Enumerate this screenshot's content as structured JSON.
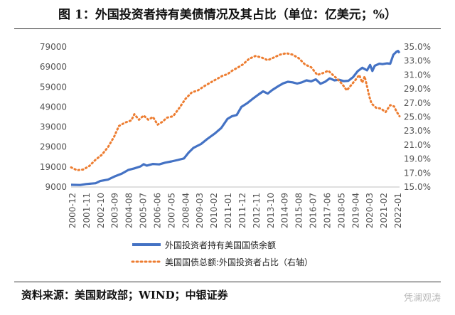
{
  "title": "图 1：外国投资者持有美债情况及其占比（单位：亿美元；%）",
  "source": "资料来源：美国财政部；WIND；中银证券",
  "watermark": "凭澜观涛",
  "colors": {
    "holdings": "#4472C4",
    "share": "#ED7D31",
    "axis": "#555555"
  },
  "chart_data": {
    "type": "line",
    "categories": [
      "2000-12",
      "2001-11",
      "2002-10",
      "2003-09",
      "2004-08",
      "2005-07",
      "2006-06",
      "2007-05",
      "2008-04",
      "2009-03",
      "2010-02",
      "2011-01",
      "2011-12",
      "2012-11",
      "2013-10",
      "2014-09",
      "2015-08",
      "2016-07",
      "2017-06",
      "2018-05",
      "2019-04",
      "2020-03",
      "2021-02",
      "2022-01"
    ],
    "y_left": {
      "ticks": [
        "9000",
        "19000",
        "29000",
        "39000",
        "49000",
        "59000",
        "69000",
        "79000"
      ],
      "range": [
        9000,
        79000
      ]
    },
    "y_right": {
      "ticks": [
        "15.0%",
        "17.0%",
        "19.0%",
        "21.0%",
        "23.0%",
        "25.0%",
        "27.0%",
        "29.0%",
        "31.0%",
        "33.0%",
        "35.0%"
      ],
      "range": [
        15,
        35
      ]
    },
    "series": [
      {
        "name": "外国投资者持有美国国债余额",
        "axis": "left",
        "style": "solid",
        "points": [
          [
            2000.92,
            10100
          ],
          [
            2001.5,
            10000
          ],
          [
            2001.9,
            10500
          ],
          [
            2002.5,
            10900
          ],
          [
            2002.8,
            12000
          ],
          [
            2003.3,
            12700
          ],
          [
            2003.7,
            14200
          ],
          [
            2004.2,
            15700
          ],
          [
            2004.6,
            17500
          ],
          [
            2005.0,
            18300
          ],
          [
            2005.4,
            19300
          ],
          [
            2005.6,
            20400
          ],
          [
            2005.8,
            19700
          ],
          [
            2006.2,
            20500
          ],
          [
            2006.6,
            20300
          ],
          [
            2007.0,
            21200
          ],
          [
            2007.4,
            21800
          ],
          [
            2007.8,
            22500
          ],
          [
            2008.2,
            23300
          ],
          [
            2008.5,
            26200
          ],
          [
            2008.8,
            28500
          ],
          [
            2009.3,
            30500
          ],
          [
            2009.7,
            33000
          ],
          [
            2010.2,
            35800
          ],
          [
            2010.6,
            38500
          ],
          [
            2011.0,
            43000
          ],
          [
            2011.3,
            44400
          ],
          [
            2011.6,
            45000
          ],
          [
            2011.9,
            49000
          ],
          [
            2012.3,
            51000
          ],
          [
            2012.7,
            53500
          ],
          [
            2013.0,
            55200
          ],
          [
            2013.3,
            56800
          ],
          [
            2013.6,
            55700
          ],
          [
            2013.9,
            57500
          ],
          [
            2014.3,
            59500
          ],
          [
            2014.6,
            60800
          ],
          [
            2014.9,
            61600
          ],
          [
            2015.2,
            61300
          ],
          [
            2015.5,
            60700
          ],
          [
            2015.8,
            61300
          ],
          [
            2016.1,
            62300
          ],
          [
            2016.4,
            61800
          ],
          [
            2016.7,
            62800
          ],
          [
            2017.0,
            60600
          ],
          [
            2017.3,
            61600
          ],
          [
            2017.6,
            63300
          ],
          [
            2017.9,
            62300
          ],
          [
            2018.2,
            62600
          ],
          [
            2018.5,
            61900
          ],
          [
            2018.8,
            62100
          ],
          [
            2019.1,
            63900
          ],
          [
            2019.4,
            66900
          ],
          [
            2019.7,
            68600
          ],
          [
            2020.0,
            67300
          ],
          [
            2020.2,
            70000
          ],
          [
            2020.35,
            67000
          ],
          [
            2020.5,
            69600
          ],
          [
            2020.8,
            70600
          ],
          [
            2021.0,
            70400
          ],
          [
            2021.3,
            70800
          ],
          [
            2021.5,
            70600
          ],
          [
            2021.7,
            75100
          ],
          [
            2021.9,
            76600
          ],
          [
            2022.0,
            77000
          ],
          [
            2022.1,
            76000
          ]
        ]
      },
      {
        "name": "美国国债总额:外国投资者占比（右轴）",
        "axis": "right",
        "style": "dotted",
        "points": [
          [
            2000.92,
            17.8
          ],
          [
            2001.3,
            17.4
          ],
          [
            2001.7,
            17.5
          ],
          [
            2002.1,
            18.0
          ],
          [
            2002.5,
            18.9
          ],
          [
            2002.9,
            19.6
          ],
          [
            2003.3,
            20.7
          ],
          [
            2003.7,
            22.2
          ],
          [
            2004.0,
            23.7
          ],
          [
            2004.4,
            24.2
          ],
          [
            2004.8,
            24.5
          ],
          [
            2005.0,
            25.4
          ],
          [
            2005.3,
            24.6
          ],
          [
            2005.6,
            25.2
          ],
          [
            2005.9,
            24.6
          ],
          [
            2006.2,
            25.0
          ],
          [
            2006.5,
            23.9
          ],
          [
            2006.8,
            24.3
          ],
          [
            2007.1,
            24.9
          ],
          [
            2007.5,
            25.1
          ],
          [
            2007.9,
            26.3
          ],
          [
            2008.3,
            27.6
          ],
          [
            2008.7,
            28.5
          ],
          [
            2009.1,
            28.8
          ],
          [
            2009.5,
            29.4
          ],
          [
            2009.9,
            29.9
          ],
          [
            2010.3,
            30.4
          ],
          [
            2010.7,
            30.9
          ],
          [
            2011.0,
            31.1
          ],
          [
            2011.3,
            31.6
          ],
          [
            2011.7,
            32.1
          ],
          [
            2012.0,
            32.5
          ],
          [
            2012.4,
            33.3
          ],
          [
            2012.8,
            33.7
          ],
          [
            2013.2,
            33.5
          ],
          [
            2013.6,
            33.1
          ],
          [
            2014.0,
            33.5
          ],
          [
            2014.4,
            33.9
          ],
          [
            2014.8,
            34.1
          ],
          [
            2015.2,
            33.9
          ],
          [
            2015.6,
            33.4
          ],
          [
            2016.0,
            32.5
          ],
          [
            2016.4,
            32.1
          ],
          [
            2016.8,
            31.0
          ],
          [
            2017.2,
            31.3
          ],
          [
            2017.5,
            31.6
          ],
          [
            2017.8,
            31.0
          ],
          [
            2018.1,
            30.4
          ],
          [
            2018.4,
            29.7
          ],
          [
            2018.7,
            28.8
          ],
          [
            2019.0,
            29.6
          ],
          [
            2019.3,
            30.4
          ],
          [
            2019.5,
            31.0
          ],
          [
            2019.7,
            29.9
          ],
          [
            2019.85,
            30.8
          ],
          [
            2020.0,
            29.4
          ],
          [
            2020.15,
            27.9
          ],
          [
            2020.3,
            26.9
          ],
          [
            2020.6,
            26.3
          ],
          [
            2020.9,
            26.2
          ],
          [
            2021.2,
            25.7
          ],
          [
            2021.5,
            26.7
          ],
          [
            2021.75,
            26.5
          ],
          [
            2021.9,
            25.8
          ],
          [
            2022.1,
            25.1
          ]
        ]
      }
    ],
    "legend": "bottom"
  }
}
